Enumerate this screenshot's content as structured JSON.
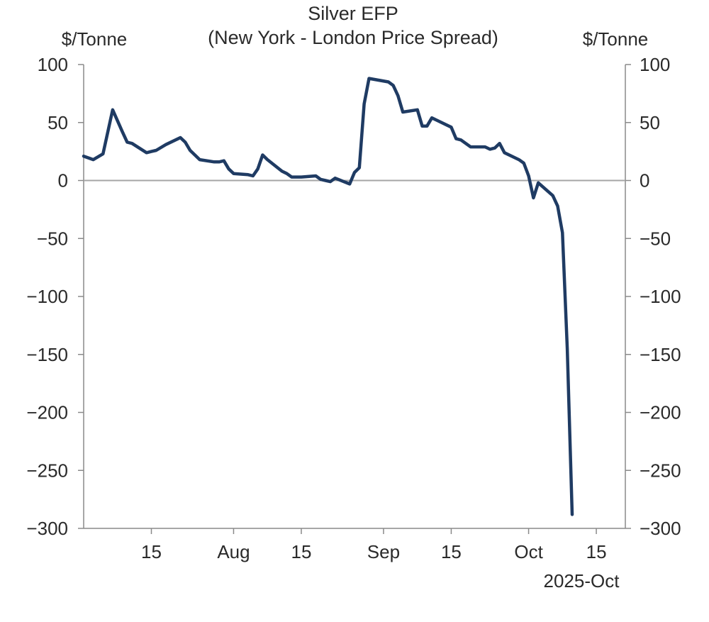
{
  "chart_data": {
    "type": "line",
    "title": "Silver EFP",
    "subtitle": "(New York - London Price Spread)",
    "ylabel_left": "$/Tonne",
    "ylabel_right": "$/Tonne",
    "ylim": [
      -300,
      100
    ],
    "yticks": [
      100,
      50,
      0,
      -50,
      -100,
      -150,
      -200,
      -250,
      -300
    ],
    "ytick_labels": [
      "100",
      "50",
      "0",
      "−50",
      "−100",
      "−150",
      "−200",
      "−250",
      "−300"
    ],
    "xlim": [
      "2025-07-01",
      "2025-10-21"
    ],
    "xticks": [
      {
        "date": "2025-07-15",
        "label": "15"
      },
      {
        "date": "2025-08-01",
        "label": "Aug"
      },
      {
        "date": "2025-08-15",
        "label": "15"
      },
      {
        "date": "2025-09-01",
        "label": "Sep"
      },
      {
        "date": "2025-09-15",
        "label": "15"
      },
      {
        "date": "2025-10-01",
        "label": "Oct"
      },
      {
        "date": "2025-10-15",
        "label": "15"
      }
    ],
    "xlabel_sub": "2025-Oct",
    "zero_line": true,
    "grid": false,
    "series": [
      {
        "color": "#1f3b63",
        "x": [
          "2025-07-01",
          "2025-07-03",
          "2025-07-05",
          "2025-07-07",
          "2025-07-09",
          "2025-07-10",
          "2025-07-11",
          "2025-07-14",
          "2025-07-15",
          "2025-07-16",
          "2025-07-18",
          "2025-07-21",
          "2025-07-22",
          "2025-07-23",
          "2025-07-25",
          "2025-07-28",
          "2025-07-29",
          "2025-07-30",
          "2025-07-31",
          "2025-08-01",
          "2025-08-04",
          "2025-08-05",
          "2025-08-06",
          "2025-08-07",
          "2025-08-08",
          "2025-08-11",
          "2025-08-12",
          "2025-08-13",
          "2025-08-14",
          "2025-08-15",
          "2025-08-18",
          "2025-08-19",
          "2025-08-20",
          "2025-08-21",
          "2025-08-22",
          "2025-08-25",
          "2025-08-26",
          "2025-08-27",
          "2025-08-28",
          "2025-08-29",
          "2025-09-02",
          "2025-09-03",
          "2025-09-04",
          "2025-09-05",
          "2025-09-08",
          "2025-09-09",
          "2025-09-10",
          "2025-09-11",
          "2025-09-12",
          "2025-09-15",
          "2025-09-16",
          "2025-09-17",
          "2025-09-18",
          "2025-09-19",
          "2025-09-22",
          "2025-09-23",
          "2025-09-24",
          "2025-09-25",
          "2025-09-26",
          "2025-09-29",
          "2025-09-30",
          "2025-10-01",
          "2025-10-02",
          "2025-10-03",
          "2025-10-06",
          "2025-10-07",
          "2025-10-08",
          "2025-10-09",
          "2025-10-10"
        ],
        "y": [
          21,
          18,
          23,
          61,
          42,
          33,
          32,
          24,
          25,
          26,
          31,
          37,
          33,
          26,
          18,
          16,
          16,
          17,
          10,
          6,
          5,
          4,
          10,
          22,
          18,
          8,
          6,
          3,
          3,
          3,
          4,
          1,
          0,
          -1,
          2,
          -3,
          7,
          11,
          66,
          88,
          85,
          82,
          73,
          59,
          61,
          47,
          47,
          54,
          52,
          46,
          36,
          35,
          32,
          29,
          29,
          27,
          28,
          32,
          24,
          18,
          15,
          4,
          -15,
          -2,
          -13,
          -22,
          -45,
          -145,
          -288
        ]
      }
    ]
  }
}
